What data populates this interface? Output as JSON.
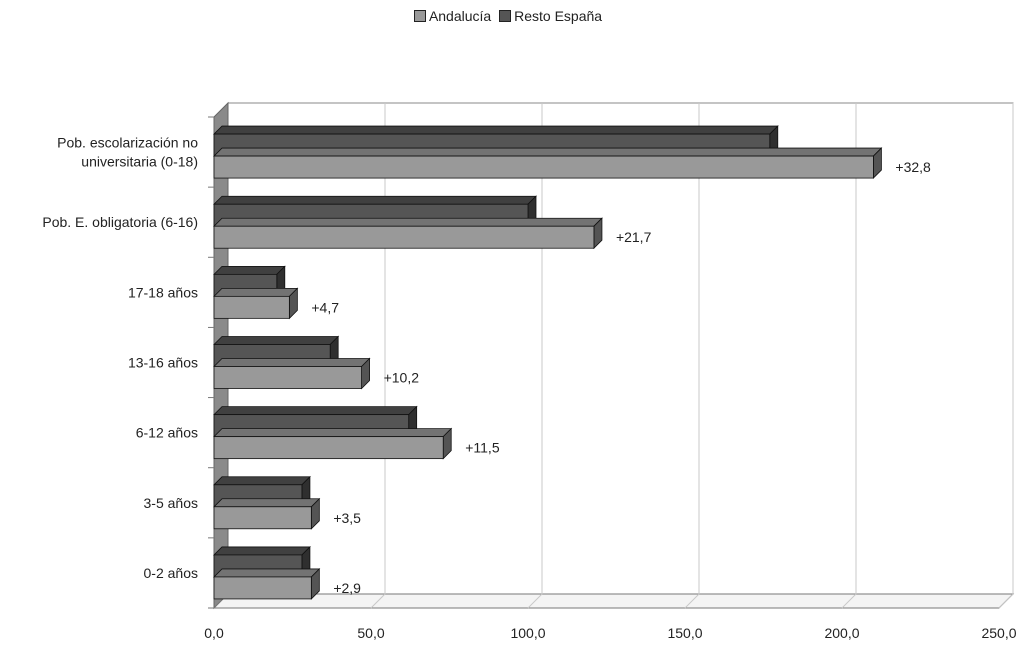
{
  "chart_data": {
    "type": "bar",
    "orientation": "horizontal",
    "title": "",
    "xlabel": "",
    "ylabel": "",
    "xlim": [
      0,
      250
    ],
    "x_ticks": [
      "0,0",
      "50,0",
      "100,0",
      "150,0",
      "200,0",
      "250,0"
    ],
    "x_tick_values": [
      0,
      50,
      100,
      150,
      200,
      250
    ],
    "grid": "vertical",
    "legend_position": "top-center",
    "categories": [
      "Pob. escolarización no universitaria (0-18)",
      "Pob. E. obligatoria (6-16)",
      "17-18 años",
      "13-16 años",
      "6-12 años",
      "3-5 años",
      "0-2 años"
    ],
    "category_lines": [
      [
        "Pob. escolarización no",
        "universitaria (0-18)"
      ],
      [
        "Pob. E. obligatoria (6-16)"
      ],
      [
        "17-18 años"
      ],
      [
        "13-16 años"
      ],
      [
        "6-12 años"
      ],
      [
        "3-5 años"
      ],
      [
        "0-2 años"
      ]
    ],
    "series": [
      {
        "name": "Andalucía",
        "color": "#999999",
        "values": [
          210,
          121,
          24,
          47,
          73,
          31,
          31
        ]
      },
      {
        "name": "Resto España",
        "color": "#555555",
        "values": [
          177,
          100,
          20,
          37,
          62,
          28,
          28
        ]
      }
    ],
    "data_labels": [
      "+32,8",
      "+21,7",
      "+4,7",
      "+10,2",
      "+11,5",
      "+3,5",
      "+2,9"
    ]
  }
}
